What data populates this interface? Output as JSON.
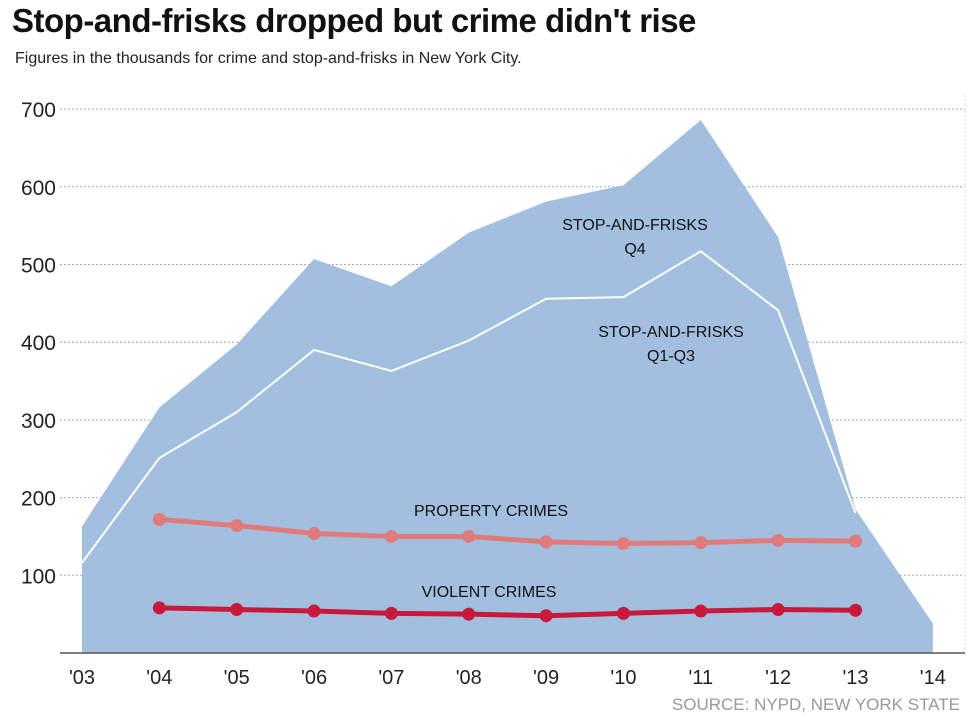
{
  "chart_data": {
    "type": "area",
    "title": "Stop-and-frisks dropped but crime didn't rise",
    "subtitle": "Figures in the thousands for crime and stop-and-frisks in New York City.",
    "source": "SOURCE: NYPD, NEW YORK STATE",
    "categories": [
      "'03",
      "'04",
      "'05",
      "'06",
      "'07",
      "'08",
      "'09",
      "'10",
      "'11",
      "'12",
      "'13",
      "'14"
    ],
    "ylim": [
      0,
      700
    ],
    "yticks": [
      100,
      200,
      300,
      400,
      500,
      600,
      700
    ],
    "grid": true,
    "series": [
      {
        "name": "STOP-AND-FRISKS Q4",
        "label_lines": [
          "STOP-AND-FRISKS",
          "Q4"
        ],
        "kind": "area",
        "color": "#a3bfe0",
        "values": [
          163,
          316,
          397,
          507,
          472,
          541,
          581,
          602,
          686,
          535,
          185,
          38
        ]
      },
      {
        "name": "STOP-AND-FRISKS Q1-Q3",
        "label_lines": [
          "STOP-AND-FRISKS",
          "Q1-Q3"
        ],
        "kind": "line",
        "color": "#ffffff",
        "values": [
          116,
          251,
          310,
          390,
          363,
          402,
          456,
          458,
          517,
          441,
          180,
          null
        ]
      },
      {
        "name": "PROPERTY CRIMES",
        "label_lines": [
          "PROPERTY CRIMES"
        ],
        "kind": "line-dots",
        "color": "#e07b7b",
        "values": [
          null,
          172,
          164,
          154,
          150,
          150,
          143,
          141,
          142,
          145,
          144,
          null
        ]
      },
      {
        "name": "VIOLENT CRIMES",
        "label_lines": [
          "VIOLENT CRIMES"
        ],
        "kind": "line-dots",
        "color": "#c8193c",
        "values": [
          null,
          58,
          56,
          54,
          51,
          50,
          48,
          51,
          54,
          56,
          55,
          null
        ]
      }
    ]
  }
}
